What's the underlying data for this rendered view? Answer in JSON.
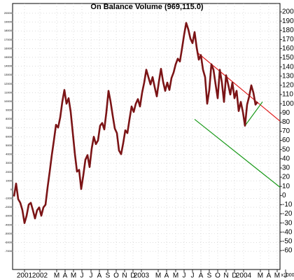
{
  "chart_data": {
    "type": "line",
    "title": "On Balance Volume (969,115.0)",
    "unit_label": "x1000",
    "color": "#7b1416",
    "values": [
      -1,
      13,
      -4,
      -8,
      -16,
      -30,
      -22,
      -10,
      -8,
      -16,
      -25,
      -16,
      -13,
      -22,
      -13,
      -10,
      9,
      26,
      44,
      60,
      77,
      74,
      85,
      102,
      115,
      100,
      106,
      91,
      68,
      45,
      26,
      28,
      7,
      22,
      39,
      44,
      31,
      51,
      64,
      56,
      60,
      76,
      79,
      72,
      91,
      114,
      102,
      87,
      73,
      68,
      49,
      45,
      57,
      71,
      68,
      83,
      97,
      91,
      100,
      105,
      97,
      112,
      123,
      137,
      129,
      121,
      129,
      118,
      108,
      124,
      138,
      124,
      114,
      123,
      115,
      128,
      134,
      143,
      149,
      146,
      160,
      175,
      188,
      181,
      171,
      166,
      178,
      161,
      148,
      153,
      137,
      129,
      100,
      115,
      143,
      137,
      121,
      106,
      137,
      123,
      102,
      131,
      121,
      110,
      123,
      106,
      114,
      92,
      102,
      91,
      76,
      99,
      108,
      120,
      112,
      99,
      102
    ],
    "ylim": [
      -80.6,
      209.15
    ],
    "yticks": [
      -60,
      -50,
      -40,
      -30,
      -20,
      -10,
      0,
      10,
      20,
      30,
      40,
      50,
      60,
      70,
      80,
      90,
      100,
      110,
      120,
      130,
      140,
      150,
      160,
      170,
      180,
      190,
      200
    ],
    "y2lim": [
      -9060,
      21110
    ],
    "y2ticks": [
      -7000,
      -6000,
      -5000,
      -4000,
      -3000,
      -2000,
      -1000,
      0,
      1000,
      2000,
      3000,
      4000,
      5000,
      6000,
      7000,
      8000,
      9000,
      10000,
      11000,
      12000,
      13000,
      14000,
      15000,
      16000,
      17000,
      18000,
      19000,
      20000
    ],
    "xlim": [
      -0.67,
      126.67
    ],
    "xticks": [
      {
        "value": 5,
        "label": "2001"
      },
      {
        "value": 12.33,
        "label": "2002"
      },
      {
        "value": 20.33,
        "label": "M"
      },
      {
        "value": 24.33,
        "label": "A"
      },
      {
        "value": 28.33,
        "label": "M"
      },
      {
        "value": 32.33,
        "label": "J"
      },
      {
        "value": 36.67,
        "label": "J"
      },
      {
        "value": 40.67,
        "label": "A"
      },
      {
        "value": 44.67,
        "label": "S"
      },
      {
        "value": 48.67,
        "label": "O"
      },
      {
        "value": 52.67,
        "label": "N"
      },
      {
        "value": 56.67,
        "label": "D"
      },
      {
        "value": 60.67,
        "label": "2003"
      },
      {
        "value": 68.67,
        "label": "M"
      },
      {
        "value": 72.67,
        "label": "A"
      },
      {
        "value": 77,
        "label": "M"
      },
      {
        "value": 81,
        "label": "J"
      },
      {
        "value": 85,
        "label": "J"
      },
      {
        "value": 89,
        "label": "A"
      },
      {
        "value": 93,
        "label": "S"
      },
      {
        "value": 97,
        "label": "O"
      },
      {
        "value": 101,
        "label": "N"
      },
      {
        "value": 105,
        "label": "D"
      },
      {
        "value": 109.33,
        "label": "2004"
      },
      {
        "value": 117.33,
        "label": "M"
      },
      {
        "value": 121.33,
        "label": "A"
      },
      {
        "value": 125.33,
        "label": "M"
      },
      {
        "value": 129.33,
        "label": "J"
      }
    ],
    "grid": true,
    "lines": [
      {
        "color": "#e02020",
        "x": [
          87.67,
          126.67
        ],
        "values": [
          155,
          81
        ]
      },
      {
        "color": "#1a9a1a",
        "x": [
          86,
          126.67
        ],
        "values": [
          83,
          9
        ]
      },
      {
        "color": "#1a9a1a",
        "x": [
          110,
          118.33
        ],
        "values": [
          76,
          102
        ]
      }
    ]
  }
}
